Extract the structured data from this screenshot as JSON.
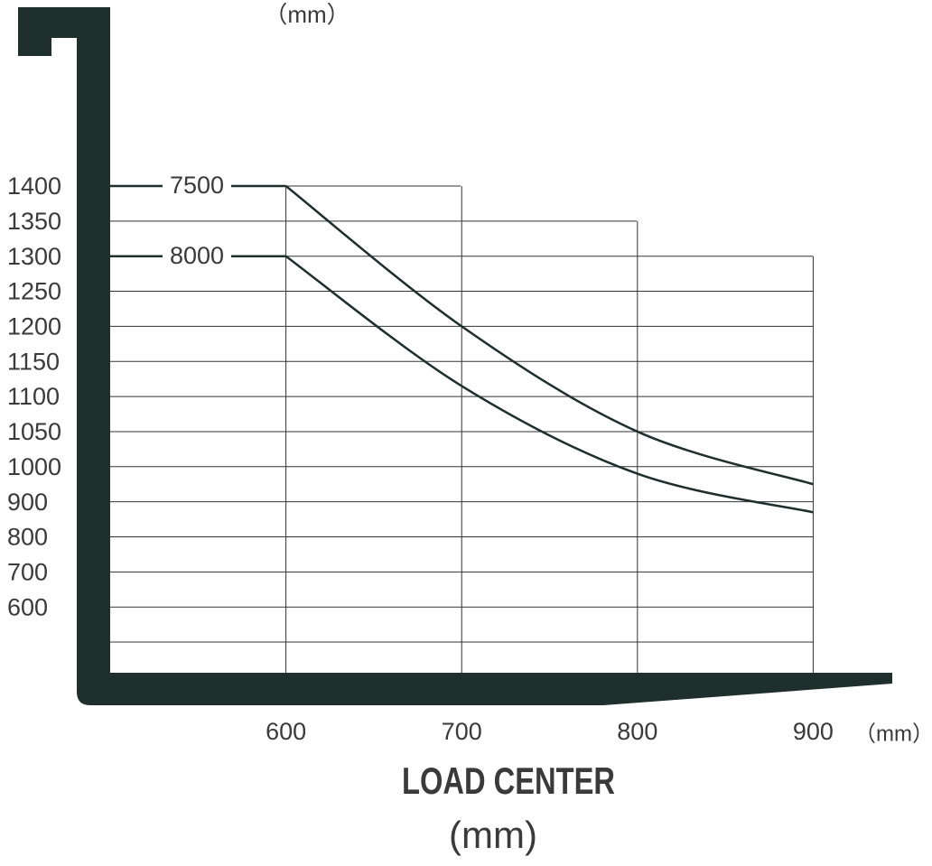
{
  "chart_data": {
    "type": "line",
    "y_unit": "（mm）",
    "x_unit": "（mm）",
    "xlabel": "LOAD CENTER",
    "xlabel_unit": "(mm)",
    "x": [
      600,
      700,
      800,
      900
    ],
    "xlim": [
      500,
      945
    ],
    "xticks": [
      600,
      700,
      800,
      900
    ],
    "yticks": [
      1400,
      1350,
      1300,
      1250,
      1200,
      1150,
      1100,
      1050,
      1000,
      900,
      800,
      700,
      600
    ],
    "grid": true,
    "series": [
      {
        "name": "7500",
        "color": "#1f2f2d",
        "values": [
          1400,
          1200,
          1050,
          950
        ]
      },
      {
        "name": "8000",
        "color": "#1f2f2d",
        "values": [
          1300,
          1115,
          980,
          870
        ]
      }
    ]
  }
}
